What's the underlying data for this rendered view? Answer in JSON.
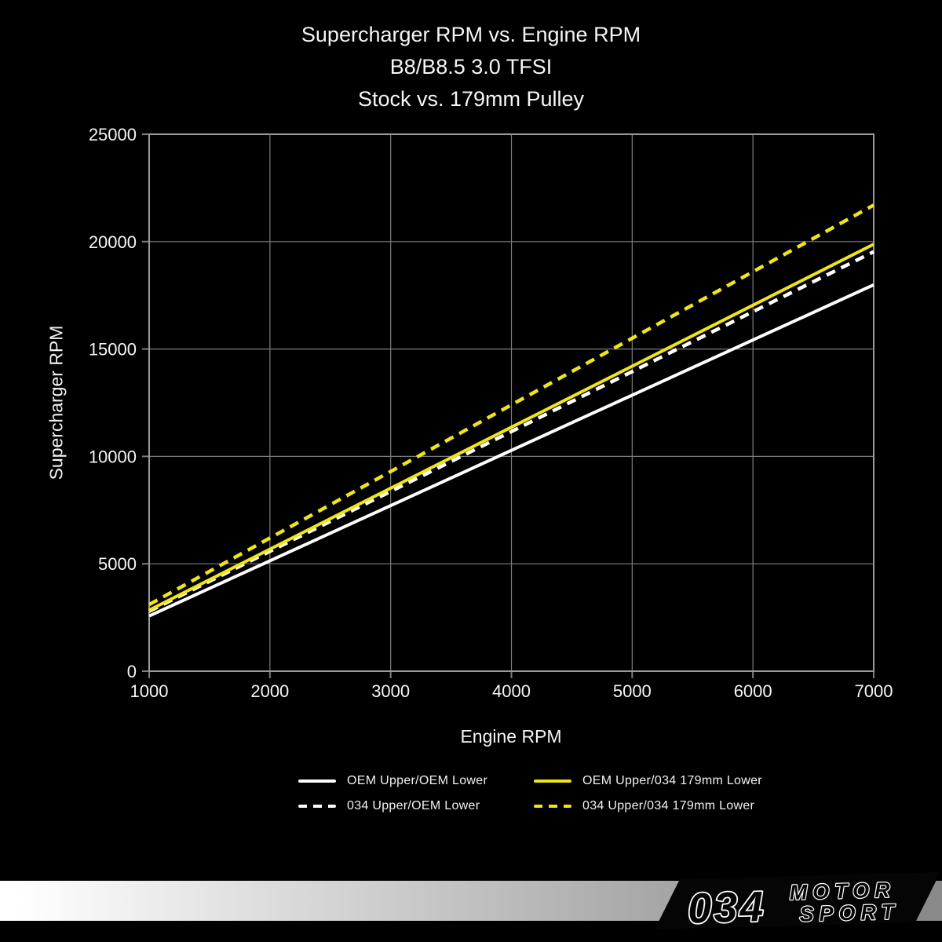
{
  "title": {
    "line1": "Supercharger RPM vs. Engine RPM",
    "line2": "B8/B8.5 3.0 TFSI",
    "line3": "Stock vs. 179mm Pulley"
  },
  "colors": {
    "background": "#000000",
    "text": "#f5f5f5",
    "grid": "#7d7d7d",
    "axis_border": "#9a9a9a",
    "yellow": "#f0e517",
    "white": "#ffffff",
    "band_left": "#ffffff",
    "band_right": "#8a8a8a",
    "logo_plate": "#050505"
  },
  "chart_data": {
    "type": "line",
    "title": "Supercharger RPM vs. Engine RPM / B8/B8.5 3.0 TFSI / Stock vs. 179mm Pulley",
    "xlabel": "Engine RPM",
    "ylabel": "Supercharger RPM",
    "xlim": [
      1000,
      7000
    ],
    "ylim": [
      0,
      25000
    ],
    "x_ticks": [
      1000,
      2000,
      3000,
      4000,
      5000,
      6000,
      7000
    ],
    "y_ticks": [
      0,
      5000,
      10000,
      15000,
      20000,
      25000
    ],
    "grid": true,
    "legend_position": "bottom",
    "x": [
      1000,
      2000,
      3000,
      4000,
      5000,
      6000,
      7000
    ],
    "series": [
      {
        "name": "OEM Upper/OEM Lower",
        "color": "#ffffff",
        "style": "solid",
        "values": [
          2570,
          5140,
          7710,
          10280,
          12850,
          15420,
          17990
        ]
      },
      {
        "name": "034 Upper/OEM Lower",
        "color": "#ffffff",
        "style": "dashed",
        "values": [
          2790,
          5580,
          8370,
          11160,
          13950,
          16740,
          19530
        ]
      },
      {
        "name": "OEM Upper/034 179mm Lower",
        "color": "#f0e517",
        "style": "solid",
        "values": [
          2840,
          5680,
          8520,
          11360,
          14200,
          17040,
          19880
        ]
      },
      {
        "name": "034 Upper/034 179mm Lower",
        "color": "#f0e517",
        "style": "dashed",
        "values": [
          3100,
          6200,
          9300,
          12400,
          15500,
          18600,
          21700
        ]
      }
    ]
  },
  "legend": {
    "items": [
      {
        "label": "OEM Upper/OEM Lower",
        "color": "#ffffff",
        "dashed": false
      },
      {
        "label": "OEM Upper/034 179mm Lower",
        "color": "#f0e517",
        "dashed": false
      },
      {
        "label": "034 Upper/OEM Lower",
        "color": "#ffffff",
        "dashed": true
      },
      {
        "label": "034 Upper/034 179mm Lower",
        "color": "#f0e517",
        "dashed": true
      }
    ]
  },
  "logo": {
    "number": "034",
    "word_top": "MOTOR",
    "word_bottom": "SPORT"
  }
}
